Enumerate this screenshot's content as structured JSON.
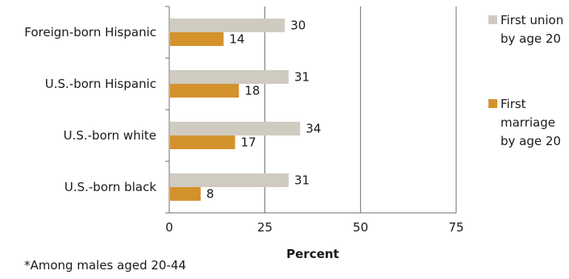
{
  "chart_data": {
    "type": "bar",
    "orientation": "horizontal",
    "categories": [
      "Foreign-born Hispanic",
      "U.S.-born Hispanic",
      "U.S.-born white",
      "U.S.-born black"
    ],
    "series": [
      {
        "name": "First union by age 20",
        "values": [
          30,
          31,
          34,
          31
        ],
        "color": "#d0cbc1"
      },
      {
        "name": "First marriage by age 20",
        "values": [
          14,
          18,
          17,
          8
        ],
        "color": "#d4922d"
      }
    ],
    "xlabel": "Percent",
    "xlim": [
      0,
      75
    ],
    "xticks": [
      "0",
      "25",
      "50",
      "75"
    ],
    "grid": true,
    "legend_position": "right"
  },
  "footnote": "*Among males aged 20-44"
}
